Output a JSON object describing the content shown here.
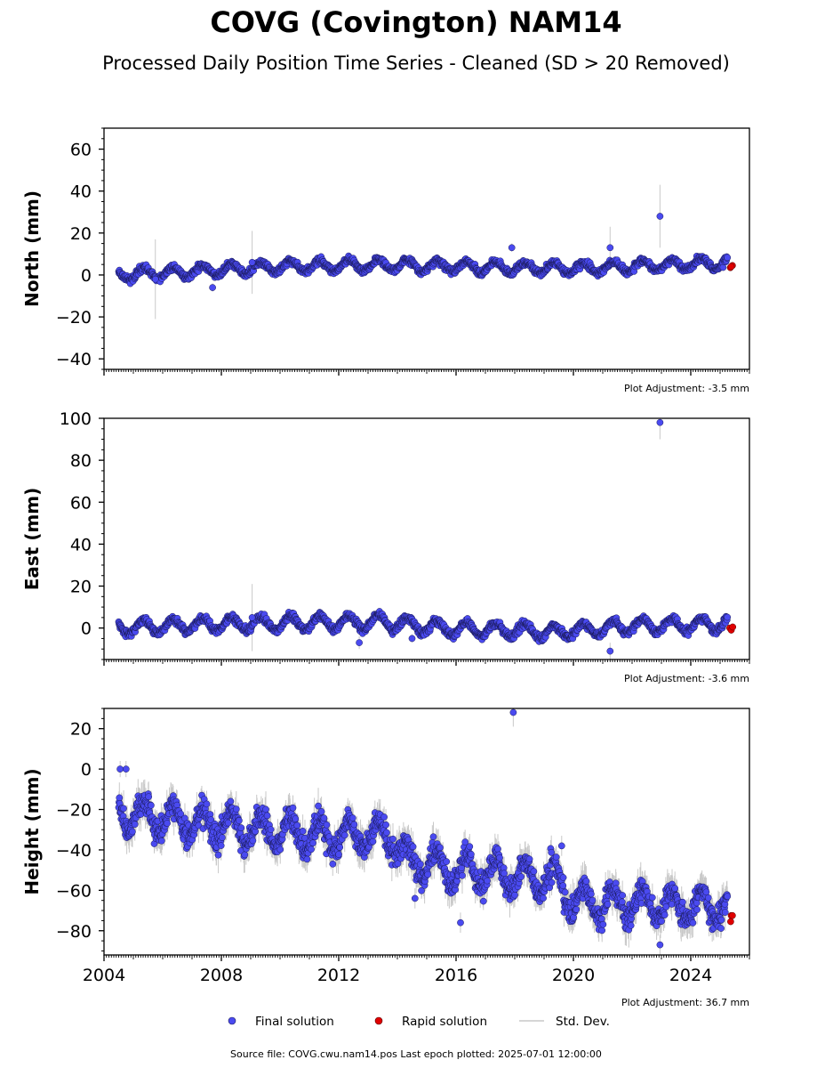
{
  "title": "COVG (Covington) NAM14",
  "subtitle": "Processed Daily Position Time Series - Cleaned (SD > 20 Removed)",
  "legend": {
    "final": "Final solution",
    "rapid": "Rapid solution",
    "std": "Std. Dev."
  },
  "source_line": "Source file: COVG.cwu.nam14.pos  Last epoch plotted: 2025-07-01 12:00:00",
  "colors": {
    "final": "#4a4af0",
    "rapid": "#e00000",
    "stddev": "#c8c8c8"
  },
  "chart_data": [
    {
      "type": "scatter",
      "ylabel": "North (mm)",
      "adjustment": "Plot Adjustment: -3.5 mm",
      "xlim": [
        2004.0,
        2026.0
      ],
      "ylim": [
        -45,
        70
      ],
      "yticks": [
        -40,
        -20,
        0,
        20,
        40,
        60
      ],
      "xticks": [],
      "grid": false,
      "trend": [
        [
          2004.5,
          0
        ],
        [
          2010.0,
          4
        ],
        [
          2013.5,
          5
        ],
        [
          2016.0,
          4
        ],
        [
          2020.0,
          3
        ],
        [
          2025.2,
          6
        ]
      ],
      "seasonal_amp": 2.6,
      "noise": 1.1,
      "stddev_typical": 1.2,
      "outliers": [
        [
          2005.75,
          -2,
          19
        ],
        [
          2009.05,
          6,
          15
        ],
        [
          2021.25,
          13,
          10
        ],
        [
          2022.95,
          28,
          15
        ],
        [
          2017.9,
          13,
          2
        ],
        [
          2007.7,
          -6,
          2
        ]
      ],
      "rapid": [
        [
          2025.35,
          3.5
        ],
        [
          2025.42,
          4.5
        ],
        [
          2025.38,
          4.0
        ]
      ]
    },
    {
      "type": "scatter",
      "ylabel": "East (mm)",
      "adjustment": "Plot Adjustment: -3.6 mm",
      "xlim": [
        2004.0,
        2026.0
      ],
      "ylim": [
        -15,
        100
      ],
      "yticks": [
        0,
        20,
        40,
        60,
        80,
        100
      ],
      "xticks": [],
      "grid": false,
      "trend": [
        [
          2004.5,
          0
        ],
        [
          2008.0,
          2
        ],
        [
          2013.5,
          3
        ],
        [
          2015.5,
          0
        ],
        [
          2019.5,
          -2
        ],
        [
          2022.0,
          1
        ],
        [
          2025.2,
          2
        ]
      ],
      "seasonal_amp": 3.2,
      "noise": 1.2,
      "stddev_typical": 1.3,
      "outliers": [
        [
          2009.05,
          5,
          16
        ],
        [
          2022.95,
          98,
          8
        ],
        [
          2021.25,
          -11,
          4
        ],
        [
          2012.7,
          -7,
          3
        ],
        [
          2014.5,
          -5,
          2
        ]
      ],
      "rapid": [
        [
          2025.33,
          0
        ],
        [
          2025.38,
          -1
        ],
        [
          2025.43,
          0.5
        ]
      ]
    },
    {
      "type": "scatter",
      "ylabel": "Height (mm)",
      "adjustment": "Plot Adjustment: 36.7 mm",
      "xlim": [
        2004.0,
        2026.0
      ],
      "ylim": [
        -92,
        30
      ],
      "yticks": [
        -80,
        -60,
        -40,
        -20,
        0,
        20
      ],
      "xticks": [
        2004,
        2008,
        2012,
        2016,
        2020,
        2024
      ],
      "grid": false,
      "trend": [
        [
          2004.5,
          -22
        ],
        [
          2008.0,
          -28
        ],
        [
          2011.0,
          -33
        ],
        [
          2013.8,
          -33
        ],
        [
          2014.3,
          -45
        ],
        [
          2016.0,
          -50
        ],
        [
          2019.5,
          -55
        ],
        [
          2020.0,
          -66
        ],
        [
          2025.2,
          -68
        ]
      ],
      "seasonal_amp": 7.5,
      "noise": 4.2,
      "stddev_typical": 6.5,
      "outliers": [
        [
          2004.55,
          0,
          4
        ],
        [
          2004.75,
          0,
          4
        ],
        [
          2017.95,
          28,
          7
        ],
        [
          2022.95,
          -87,
          5
        ],
        [
          2019.6,
          -38,
          5
        ],
        [
          2014.6,
          -64,
          5
        ],
        [
          2016.15,
          -76,
          5
        ]
      ],
      "rapid": [
        [
          2025.38,
          -72.5
        ],
        [
          2025.42,
          -72.5
        ],
        [
          2025.36,
          -75.5
        ]
      ]
    }
  ]
}
